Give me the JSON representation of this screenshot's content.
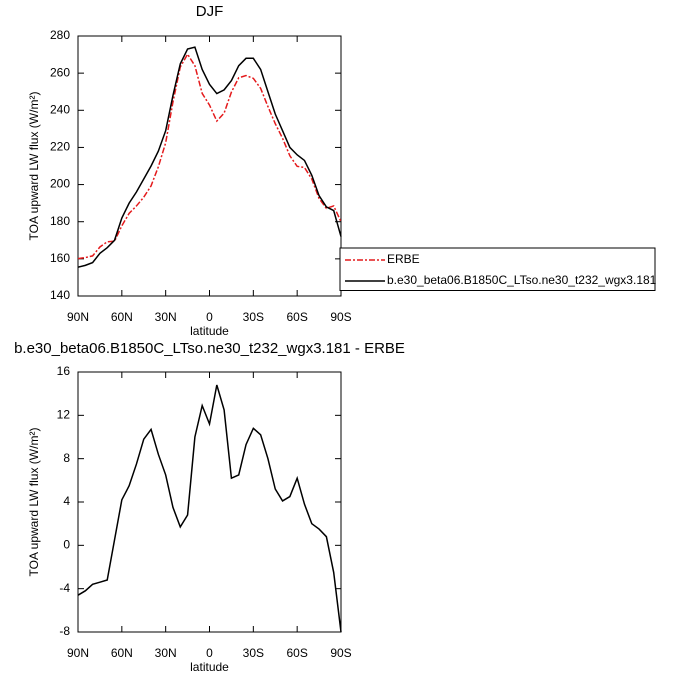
{
  "chart_data": [
    {
      "type": "line",
      "title": "DJF",
      "x_label": "latitude",
      "y_label": "TOA upward LW flux (W/m²)",
      "x": [
        90,
        85,
        80,
        75,
        70,
        65,
        60,
        55,
        50,
        45,
        40,
        35,
        30,
        25,
        20,
        15,
        10,
        5,
        0,
        -5,
        -10,
        -15,
        -20,
        -25,
        -30,
        -35,
        -40,
        -45,
        -50,
        -55,
        -60,
        -65,
        -70,
        -75,
        -80,
        -85,
        -90
      ],
      "xlim": [
        90,
        -90
      ],
      "xticks": [
        {
          "value": 90,
          "label": "90N"
        },
        {
          "value": 60,
          "label": "60N"
        },
        {
          "value": 30,
          "label": "30N"
        },
        0,
        {
          "value": -30,
          "label": "30S"
        },
        {
          "value": -60,
          "label": "60S"
        },
        {
          "value": -90,
          "label": "90S"
        }
      ],
      "ylim": [
        140,
        280
      ],
      "yticks": [
        140,
        160,
        180,
        200,
        220,
        240,
        260,
        280
      ],
      "legend": "right",
      "series": [
        {
          "name": "ERBE",
          "color": "#e41a1c",
          "dash": true,
          "values": [
            160.1,
            160.7,
            161.6,
            166.4,
            169.2,
            169.5,
            177.8,
            184.5,
            188.5,
            193.2,
            199.3,
            209.6,
            222.5,
            244.5,
            263.3,
            270.2,
            264,
            249.1,
            242.8,
            234.2,
            238.5,
            249.8,
            257.5,
            258.7,
            257.2,
            251.8,
            242,
            232.8,
            224.9,
            215.5,
            209.8,
            209.2,
            203,
            192.5,
            187.2,
            188.5,
            180
          ]
        },
        {
          "name": "b.e30_beta06.B1850C_LTso.ne30_t232_wgx3.181",
          "color": "#000000",
          "dash": false,
          "values": [
            155.5,
            156.5,
            158,
            163,
            166,
            170,
            182,
            190,
            196,
            203,
            210,
            218,
            229,
            248,
            265,
            273,
            274,
            262,
            254,
            249,
            251,
            256,
            264,
            268,
            268,
            262,
            250,
            238,
            229,
            220,
            216,
            213,
            205,
            194,
            188,
            186,
            172
          ]
        }
      ]
    },
    {
      "type": "line",
      "title": "b.e30_beta06.B1850C_LTso.ne30_t232_wgx3.181 - ERBE",
      "x_label": "latitude",
      "y_label": "TOA upward LW flux (W/m²)",
      "x": [
        90,
        85,
        80,
        75,
        70,
        65,
        60,
        55,
        50,
        45,
        40,
        35,
        30,
        25,
        20,
        15,
        10,
        5,
        0,
        -5,
        -10,
        -15,
        -20,
        -25,
        -30,
        -35,
        -40,
        -45,
        -50,
        -55,
        -60,
        -65,
        -70,
        -75,
        -80,
        -85,
        -90
      ],
      "xlim": [
        90,
        -90
      ],
      "xticks": [
        {
          "value": 90,
          "label": "90N"
        },
        {
          "value": 60,
          "label": "60N"
        },
        {
          "value": 30,
          "label": "30N"
        },
        0,
        {
          "value": -30,
          "label": "30S"
        },
        {
          "value": -60,
          "label": "60S"
        },
        {
          "value": -90,
          "label": "90S"
        }
      ],
      "ylim": [
        -8,
        16
      ],
      "yticks": [
        -8,
        -4,
        0,
        4,
        8,
        12,
        16
      ],
      "series": [
        {
          "color": "#000000",
          "dash": false,
          "values": [
            -4.6,
            -4.2,
            -3.6,
            -3.4,
            -3.2,
            0.5,
            4.2,
            5.5,
            7.5,
            9.8,
            10.7,
            8.4,
            6.5,
            3.5,
            1.7,
            2.8,
            10,
            12.9,
            11.2,
            14.8,
            12.5,
            6.2,
            6.5,
            9.3,
            10.8,
            10.2,
            8,
            5.2,
            4.1,
            4.5,
            6.2,
            3.8,
            2,
            1.5,
            0.8,
            -2.5,
            -8
          ]
        }
      ]
    }
  ]
}
